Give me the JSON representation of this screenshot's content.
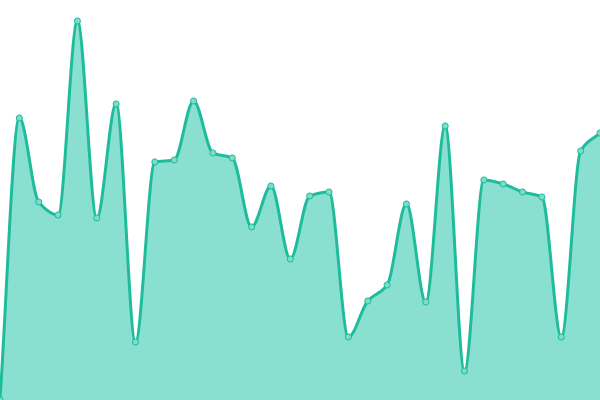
{
  "chart_data": {
    "type": "area",
    "title": "",
    "xlabel": "",
    "ylabel": "",
    "x": [
      0,
      1,
      2,
      3,
      4,
      5,
      6,
      7,
      8,
      9,
      10,
      11,
      12,
      13,
      14,
      15,
      16,
      17,
      18,
      19,
      20,
      21,
      22,
      23,
      24,
      25,
      26,
      27,
      28,
      29,
      30,
      31
    ],
    "series": [
      {
        "values": [
          0,
          282,
          198,
          185,
          379,
          182,
          296,
          58,
          238,
          240,
          299,
          247,
          242,
          173,
          214,
          141,
          204,
          208,
          63,
          99,
          115,
          196,
          98,
          274,
          29,
          220,
          216,
          208,
          203,
          63,
          249,
          267
        ]
      }
    ],
    "xlim": [
      0,
      31
    ],
    "ylim": [
      0,
      400
    ],
    "grid": false,
    "axes_visible": false,
    "interpolation": "smooth",
    "colors": {
      "line": "#1fbc9c",
      "fill": "#8ae0d0",
      "marker_fill": "#7fdcc8",
      "marker_stroke": "#1fbc9c"
    }
  }
}
